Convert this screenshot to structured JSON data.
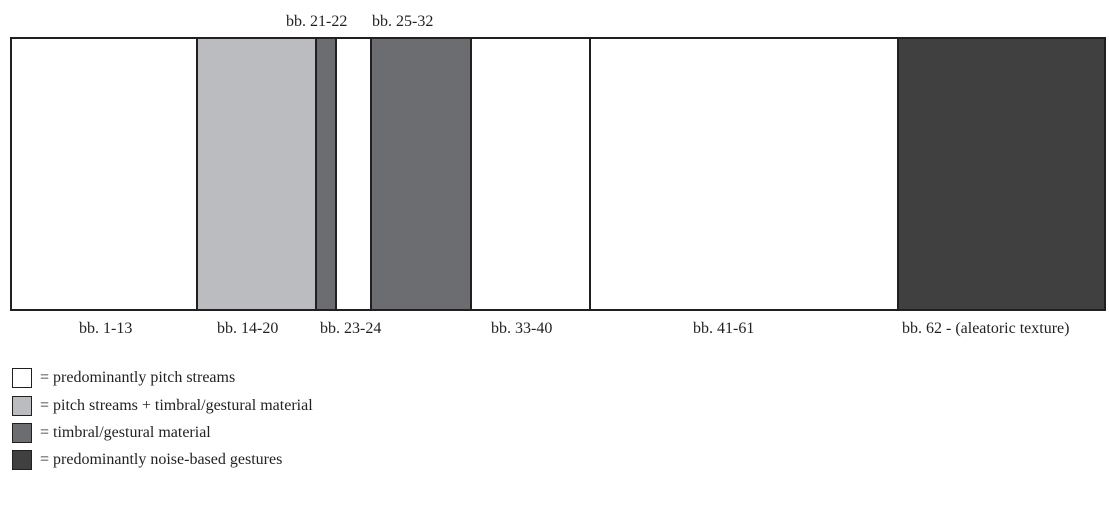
{
  "colors": {
    "pitch_streams": "#ffffff",
    "pitch_plus_timbral": "#bbbcbf",
    "timbral_gestural": "#6c6d71",
    "noise_based": "#404040",
    "outline": "#231f20"
  },
  "segments": [
    {
      "id": "seg-1",
      "material": "pitch_streams"
    },
    {
      "id": "seg-2",
      "material": "pitch_plus_timbral"
    },
    {
      "id": "seg-3",
      "material": "timbral_gestural"
    },
    {
      "id": "seg-4",
      "material": "pitch_streams"
    },
    {
      "id": "seg-5",
      "material": "timbral_gestural"
    },
    {
      "id": "seg-6",
      "material": "pitch_streams"
    },
    {
      "id": "seg-7",
      "material": "pitch_streams"
    },
    {
      "id": "seg-8",
      "material": "noise_based"
    }
  ],
  "labels": {
    "below": [
      "bb. 1-13",
      "bb. 14-20",
      "bb. 23-24",
      "bb. 33-40",
      "bb. 41-61",
      "bb. 62 - (aleatoric texture)"
    ],
    "above": [
      "bb. 21-22",
      "bb. 25-32"
    ]
  },
  "legend": [
    {
      "material": "pitch_streams",
      "text": "= predominantly pitch streams"
    },
    {
      "material": "pitch_plus_timbral",
      "text": "= pitch streams + timbral/gestural material"
    },
    {
      "material": "timbral_gestural",
      "text": "= timbral/gestural material"
    },
    {
      "material": "noise_based",
      "text": "= predominantly noise-based gestures"
    }
  ]
}
